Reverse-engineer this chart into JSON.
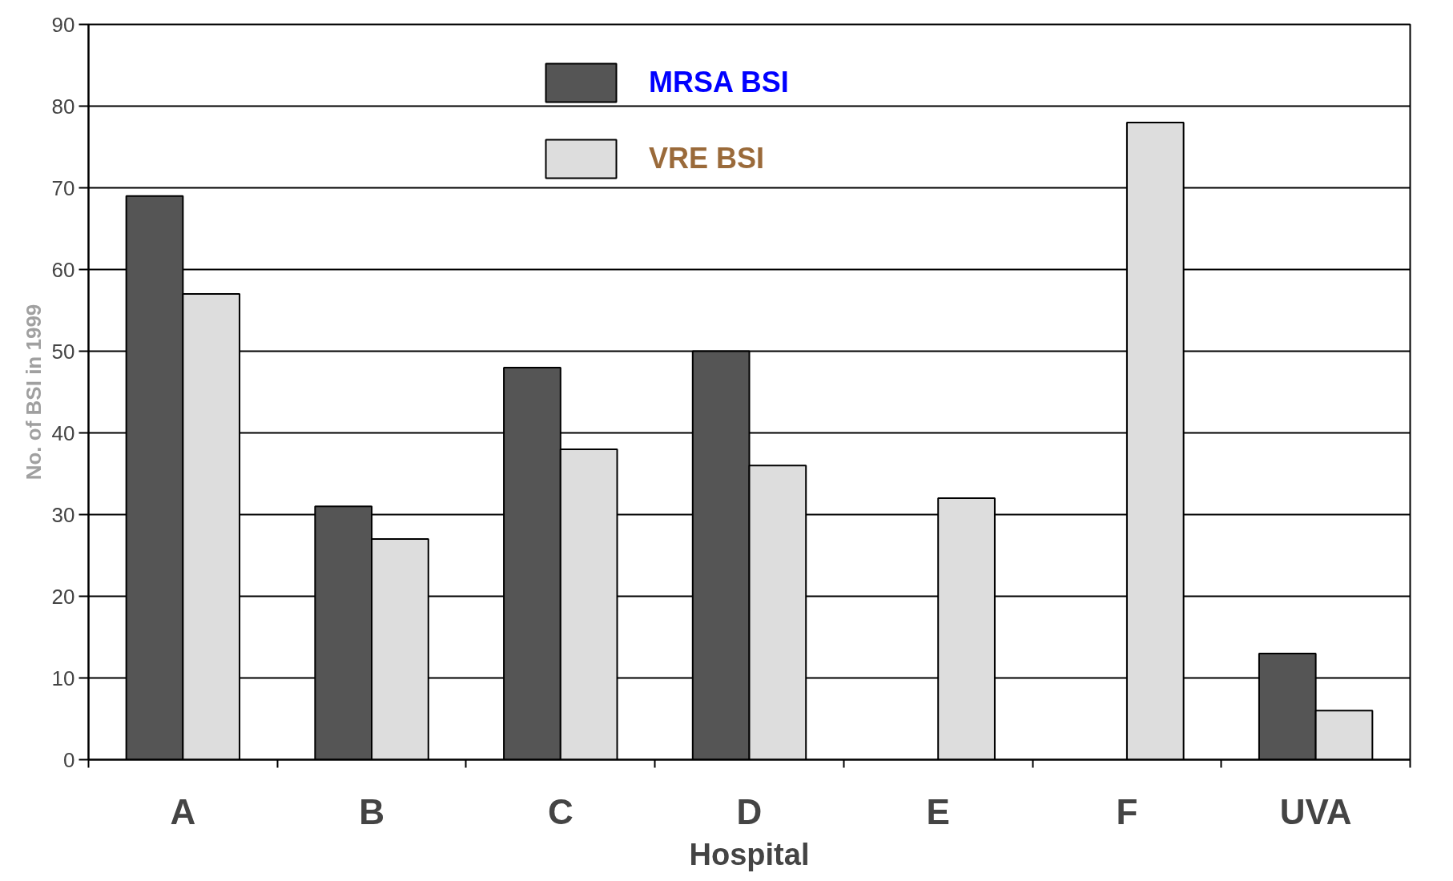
{
  "chart_data": {
    "type": "bar",
    "xlabel": "Hospital",
    "ylabel": "No. of BSI in 1999",
    "categories": [
      "A",
      "B",
      "C",
      "D",
      "E",
      "F",
      "UVA"
    ],
    "series": [
      {
        "name": "MRSA BSI",
        "color": "#555555",
        "values": [
          69,
          31,
          48,
          50,
          null,
          null,
          13
        ]
      },
      {
        "name": "VRE BSI",
        "color": "#dddddd",
        "values": [
          57,
          27,
          38,
          36,
          32,
          78,
          6
        ]
      }
    ],
    "ylim": [
      0,
      90
    ],
    "yticks": [
      0,
      10,
      20,
      30,
      40,
      50,
      60,
      70,
      80,
      90
    ],
    "grid": "y",
    "legend": "top"
  }
}
